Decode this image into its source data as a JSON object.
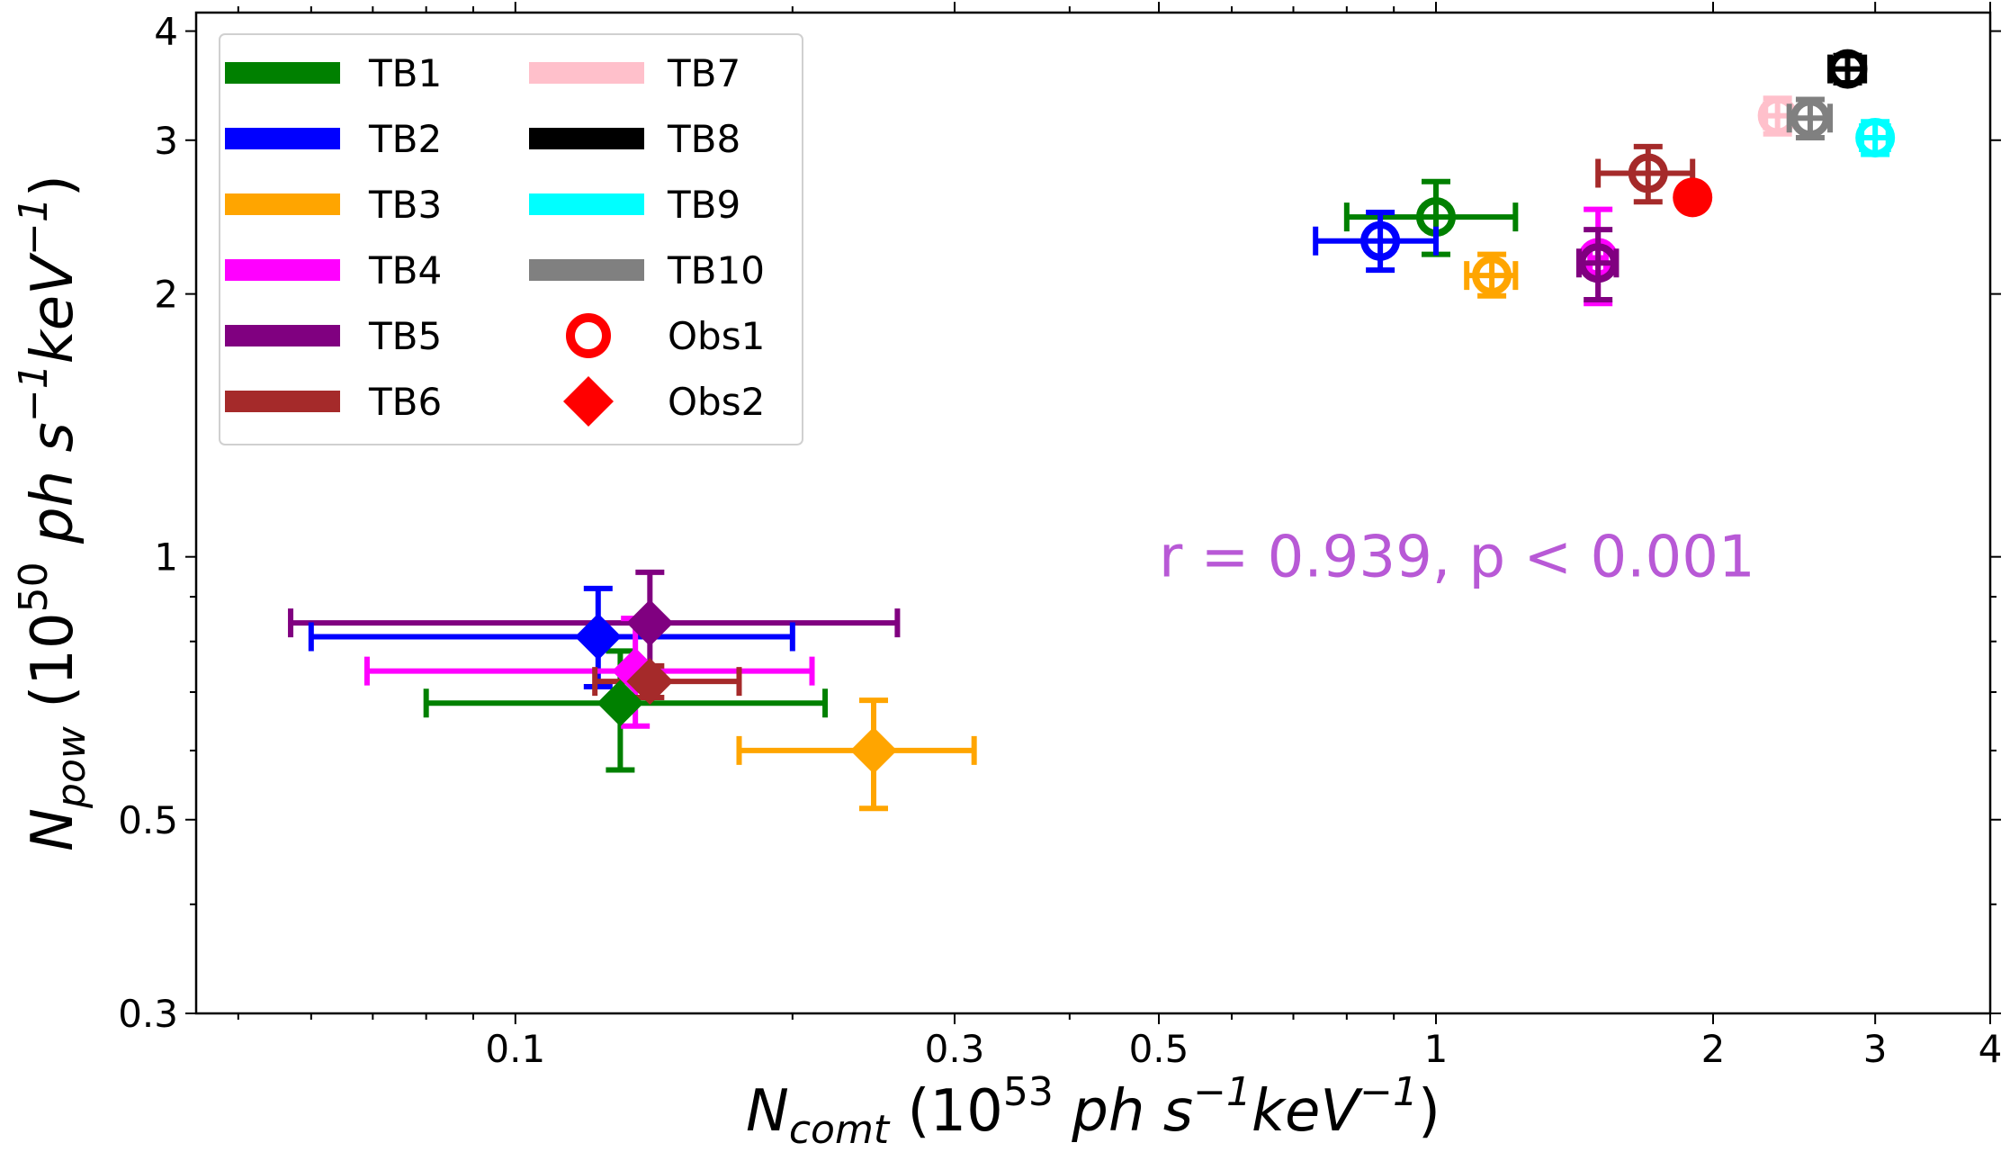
{
  "chart_data": {
    "type": "scatter",
    "xscale": "log",
    "yscale": "log",
    "xlim": [
      0.045,
      4
    ],
    "ylim": [
      0.3,
      4.2
    ],
    "xlabel": {
      "main": "N",
      "sub": "comt",
      "units_open": "(10",
      "exp": "53",
      "units_mid": "ph s",
      "exp2": "−1",
      "units_mid2": "keV",
      "exp3": "−1",
      "units_close": ")"
    },
    "ylabel": {
      "main": "N",
      "sub": "pow",
      "units_open": "(10",
      "exp": "50",
      "units_mid": "ph s",
      "exp2": "−1",
      "units_mid2": "keV",
      "exp3": "−1",
      "units_close": ")"
    },
    "xticks": [
      {
        "value": 0.1,
        "label": "0.1"
      },
      {
        "value": 0.3,
        "label": "0.3"
      },
      {
        "value": 0.5,
        "label": "0.5"
      },
      {
        "value": 1,
        "label": "1"
      },
      {
        "value": 2,
        "label": "2"
      },
      {
        "value": 3,
        "label": "3"
      },
      {
        "value": 4,
        "label": "4"
      }
    ],
    "yticks": [
      {
        "value": 0.3,
        "label": "0.3"
      },
      {
        "value": 0.5,
        "label": "0.5"
      },
      {
        "value": 1,
        "label": "1"
      },
      {
        "value": 2,
        "label": "2"
      },
      {
        "value": 3,
        "label": "3"
      },
      {
        "value": 4,
        "label": "4"
      }
    ],
    "annotation": {
      "text": "r = 0.939, p < 0.001",
      "color": "#b859d6",
      "x": 0.5,
      "y": 1.0
    },
    "legend": {
      "position": "top-left",
      "entries": [
        {
          "label": "TB1",
          "kind": "line",
          "color": "#008000"
        },
        {
          "label": "TB2",
          "kind": "line",
          "color": "#0000ff"
        },
        {
          "label": "TB3",
          "kind": "line",
          "color": "#ffa500"
        },
        {
          "label": "TB4",
          "kind": "line",
          "color": "#ff00ff"
        },
        {
          "label": "TB5",
          "kind": "line",
          "color": "#800080"
        },
        {
          "label": "TB6",
          "kind": "line",
          "color": "#a52a2a"
        },
        {
          "label": "TB7",
          "kind": "line",
          "color": "#ffc0cb"
        },
        {
          "label": "TB8",
          "kind": "line",
          "color": "#000000"
        },
        {
          "label": "TB9",
          "kind": "line",
          "color": "#00ffff"
        },
        {
          "label": "TB10",
          "kind": "line",
          "color": "#808080"
        },
        {
          "label": "Obs1",
          "kind": "circle",
          "color": "#ff0000"
        },
        {
          "label": "Obs2",
          "kind": "diamond",
          "color": "#ff0000"
        }
      ]
    },
    "series": [
      {
        "name": "TB1",
        "color": "#008000",
        "obs1": {
          "x": 1.0,
          "y": 2.45,
          "xerr": [
            0.2,
            0.22
          ],
          "yerr": [
            0.23,
            0.24
          ]
        },
        "obs2": {
          "x": 0.13,
          "y": 0.68,
          "xerr": [
            0.05,
            0.087
          ],
          "yerr": [
            0.11,
            0.1
          ]
        }
      },
      {
        "name": "TB2",
        "color": "#0000ff",
        "obs1": {
          "x": 0.87,
          "y": 2.3,
          "xerr": [
            0.13,
            0.13
          ],
          "yerr": [
            0.17,
            0.18
          ]
        },
        "obs2": {
          "x": 0.123,
          "y": 0.81,
          "xerr": [
            0.063,
            0.077
          ],
          "yerr": [
            0.1,
            0.11
          ]
        }
      },
      {
        "name": "TB3",
        "color": "#ffa500",
        "obs1": {
          "x": 1.15,
          "y": 2.1,
          "xerr": [
            0.07,
            0.07
          ],
          "yerr": [
            0.11,
            0.12
          ]
        },
        "obs2": {
          "x": 0.245,
          "y": 0.6,
          "xerr": [
            0.07,
            0.07
          ],
          "yerr": [
            0.085,
            0.085
          ]
        }
      },
      {
        "name": "TB4",
        "color": "#ff00ff",
        "obs1": {
          "x": 1.5,
          "y": 2.2,
          "xerr": [
            0.03,
            0.03
          ],
          "yerr": [
            0.25,
            0.3
          ]
        },
        "obs2": {
          "x": 0.135,
          "y": 0.74,
          "xerr": [
            0.066,
            0.075
          ],
          "yerr": [
            0.1,
            0.11
          ]
        }
      },
      {
        "name": "TB5",
        "color": "#800080",
        "obs1": {
          "x": 1.5,
          "y": 2.17,
          "xerr": [
            0.07,
            0.07
          ],
          "yerr": [
            0.2,
            0.2
          ]
        },
        "obs2": {
          "x": 0.14,
          "y": 0.84,
          "xerr": [
            0.083,
            0.12
          ],
          "yerr": [
            0.12,
            0.12
          ]
        }
      },
      {
        "name": "TB6",
        "color": "#a52a2a",
        "obs1": {
          "x": 1.7,
          "y": 2.75,
          "xerr": [
            0.2,
            0.2
          ],
          "yerr": [
            0.2,
            0.2
          ]
        },
        "obs2": {
          "x": 0.14,
          "y": 0.72,
          "xerr": [
            0.018,
            0.035
          ],
          "yerr": [
            0.03,
            0.03
          ]
        }
      },
      {
        "name": "TB7",
        "color": "#ffc0cb",
        "obs1": {
          "x": 2.35,
          "y": 3.2,
          "xerr": [
            0.07,
            0.07
          ],
          "yerr": [
            0.15,
            0.15
          ]
        }
      },
      {
        "name": "TB8",
        "color": "#000000",
        "obs1": {
          "x": 2.8,
          "y": 3.62,
          "xerr": [
            0.12,
            0.12
          ],
          "yerr": [
            0.13,
            0.13
          ]
        }
      },
      {
        "name": "TB9",
        "color": "#00ffff",
        "obs1": {
          "x": 3.0,
          "y": 3.02,
          "xerr": [
            0.1,
            0.1
          ],
          "yerr": [
            0.13,
            0.13
          ]
        }
      },
      {
        "name": "TB10",
        "color": "#808080",
        "obs1": {
          "x": 2.55,
          "y": 3.18,
          "xerr": [
            0.13,
            0.13
          ],
          "yerr": [
            0.16,
            0.16
          ]
        }
      },
      {
        "name": "Obs1-summary",
        "color": "#ff0000",
        "obs1_filled": {
          "x": 1.9,
          "y": 2.58
        }
      }
    ]
  }
}
